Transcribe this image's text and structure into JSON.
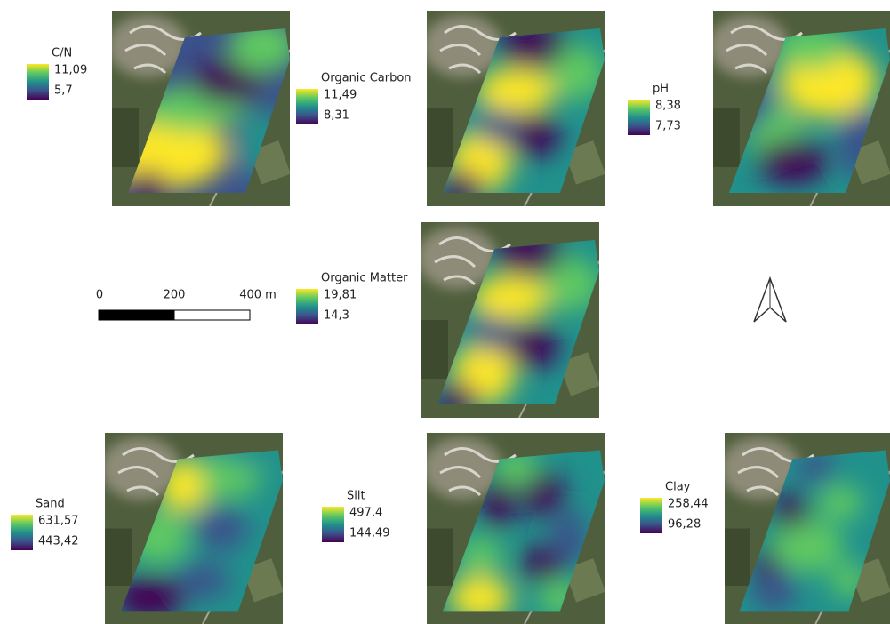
{
  "panels": [
    {
      "title": "C/N",
      "max": "11,09",
      "min": "5,7"
    },
    {
      "title": "Organic Carbon",
      "max": "11,49",
      "min": "8,31"
    },
    {
      "title": "pH",
      "max": "8,38",
      "min": "7,73"
    },
    {
      "title": "Organic Matter",
      "max": "19,81",
      "min": "14,3"
    },
    {
      "title": "Sand",
      "max": "631,57",
      "min": "443,42"
    },
    {
      "title": "Silt",
      "max": "497,4",
      "min": "144,49"
    },
    {
      "title": "Clay",
      "max": "258,44",
      "min": "96,28"
    }
  ],
  "scale_bar": {
    "labels": [
      "0",
      "200",
      "400 m"
    ]
  }
}
